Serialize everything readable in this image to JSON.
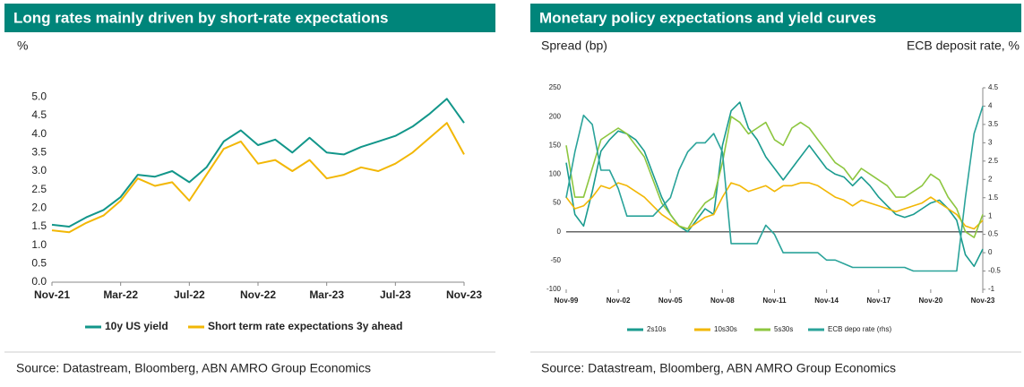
{
  "chart_data": [
    {
      "type": "line",
      "title": "Long rates mainly driven by short-rate expectations",
      "y_label": "%",
      "categories": [
        "Nov-21",
        null,
        null,
        null,
        "Mar-22",
        null,
        null,
        null,
        "Jul-22",
        null,
        null,
        null,
        "Nov-22",
        null,
        null,
        null,
        "Mar-23",
        null,
        null,
        null,
        "Jul-23",
        null,
        null,
        null,
        "Nov-23"
      ],
      "series": [
        {
          "name": "10y US yield",
          "color": "#12968a",
          "values": [
            1.55,
            1.5,
            1.75,
            1.95,
            2.3,
            2.9,
            2.85,
            3.0,
            2.7,
            3.1,
            3.8,
            4.1,
            3.7,
            3.85,
            3.5,
            3.9,
            3.5,
            3.45,
            3.65,
            3.8,
            3.95,
            4.2,
            4.55,
            4.95,
            4.3
          ]
        },
        {
          "name": "Short term rate expectations 3y ahead",
          "color": "#f2b705",
          "values": [
            1.4,
            1.35,
            1.6,
            1.8,
            2.2,
            2.8,
            2.6,
            2.7,
            2.2,
            2.9,
            3.6,
            3.8,
            3.2,
            3.3,
            3.0,
            3.3,
            2.8,
            2.9,
            3.1,
            3.0,
            3.2,
            3.5,
            3.9,
            4.3,
            3.45
          ]
        }
      ],
      "ylim": [
        0,
        5.2
      ],
      "yticks": [
        {
          "value": 0,
          "label": "0.0"
        },
        0.5,
        {
          "value": 1,
          "label": "1.0"
        },
        1.5,
        {
          "value": 2,
          "label": "2.0"
        },
        2.5,
        {
          "value": 3,
          "label": "3.0"
        },
        3.5,
        {
          "value": 4,
          "label": "4.0"
        },
        4.5,
        {
          "value": 5,
          "label": "5.0"
        }
      ],
      "grid": false,
      "source": "Source: Datastream, Bloomberg, ABN AMRO Group Economics"
    },
    {
      "type": "line",
      "title": "Monetary policy expectations and yield curves",
      "y_label": "Spread (bp)",
      "y2_label": "ECB deposit rate, %",
      "categories": [
        "Nov-99",
        null,
        null,
        null,
        null,
        null,
        "Nov-02",
        null,
        null,
        null,
        null,
        null,
        "Nov-05",
        null,
        null,
        null,
        null,
        null,
        "Nov-08",
        null,
        null,
        null,
        null,
        null,
        "Nov-11",
        null,
        null,
        null,
        null,
        null,
        "Nov-14",
        null,
        null,
        null,
        null,
        null,
        "Nov-17",
        null,
        null,
        null,
        null,
        null,
        "Nov-20",
        null,
        null,
        null,
        null,
        null,
        "Nov-23"
      ],
      "series": [
        {
          "name": "2s10s",
          "color": "#1a9b8f",
          "values": [
            120,
            30,
            10,
            70,
            140,
            160,
            175,
            170,
            160,
            140,
            100,
            60,
            30,
            10,
            0,
            20,
            40,
            30,
            150,
            210,
            225,
            180,
            160,
            130,
            110,
            90,
            110,
            130,
            150,
            130,
            110,
            100,
            95,
            80,
            95,
            80,
            60,
            45,
            30,
            25,
            30,
            40,
            50,
            55,
            40,
            20,
            -40,
            -60,
            -30
          ]
        },
        {
          "name": "10s30s",
          "color": "#f2b705",
          "values": [
            60,
            40,
            45,
            60,
            80,
            75,
            85,
            80,
            70,
            60,
            45,
            30,
            20,
            10,
            5,
            15,
            25,
            30,
            60,
            85,
            80,
            70,
            75,
            80,
            70,
            80,
            80,
            85,
            85,
            80,
            70,
            60,
            55,
            45,
            55,
            50,
            45,
            40,
            35,
            40,
            45,
            50,
            60,
            50,
            40,
            30,
            10,
            5,
            20
          ]
        },
        {
          "name": "5s30s",
          "color": "#8dc63f",
          "values": [
            150,
            60,
            60,
            110,
            160,
            170,
            180,
            170,
            150,
            130,
            90,
            50,
            30,
            10,
            5,
            30,
            50,
            60,
            120,
            200,
            190,
            170,
            180,
            190,
            160,
            150,
            180,
            190,
            180,
            160,
            140,
            120,
            110,
            90,
            110,
            100,
            90,
            80,
            60,
            60,
            70,
            80,
            100,
            90,
            60,
            40,
            0,
            -10,
            30
          ]
        },
        {
          "name": "ECB depo rate (rhs)",
          "color": "#2aa39a",
          "axis": "y2",
          "values": [
            1.5,
            2.75,
            3.75,
            3.5,
            2.25,
            2.25,
            1.75,
            1.0,
            1.0,
            1.0,
            1.0,
            1.25,
            1.5,
            2.25,
            2.75,
            3.0,
            3.0,
            3.25,
            2.75,
            0.25,
            0.25,
            0.25,
            0.25,
            0.75,
            0.5,
            0,
            0,
            0,
            0,
            0,
            -0.2,
            -0.2,
            -0.3,
            -0.4,
            -0.4,
            -0.4,
            -0.4,
            -0.4,
            -0.4,
            -0.4,
            -0.5,
            -0.5,
            -0.5,
            -0.5,
            -0.5,
            -0.5,
            1.5,
            3.25,
            4.0
          ]
        }
      ],
      "ylim": [
        -100,
        250
      ],
      "yticks": [
        -100,
        -50,
        0,
        50,
        100,
        150,
        200,
        250
      ],
      "y2lim": [
        -1,
        4.5
      ],
      "y2ticks": [
        -1,
        -0.5,
        0,
        0.5,
        1,
        1.5,
        2,
        2.5,
        3,
        3.5,
        4,
        4.5
      ],
      "zero_line": true,
      "grid": false,
      "source": "Source: Datastream, Bloomberg, ABN AMRO Group Economics"
    }
  ]
}
